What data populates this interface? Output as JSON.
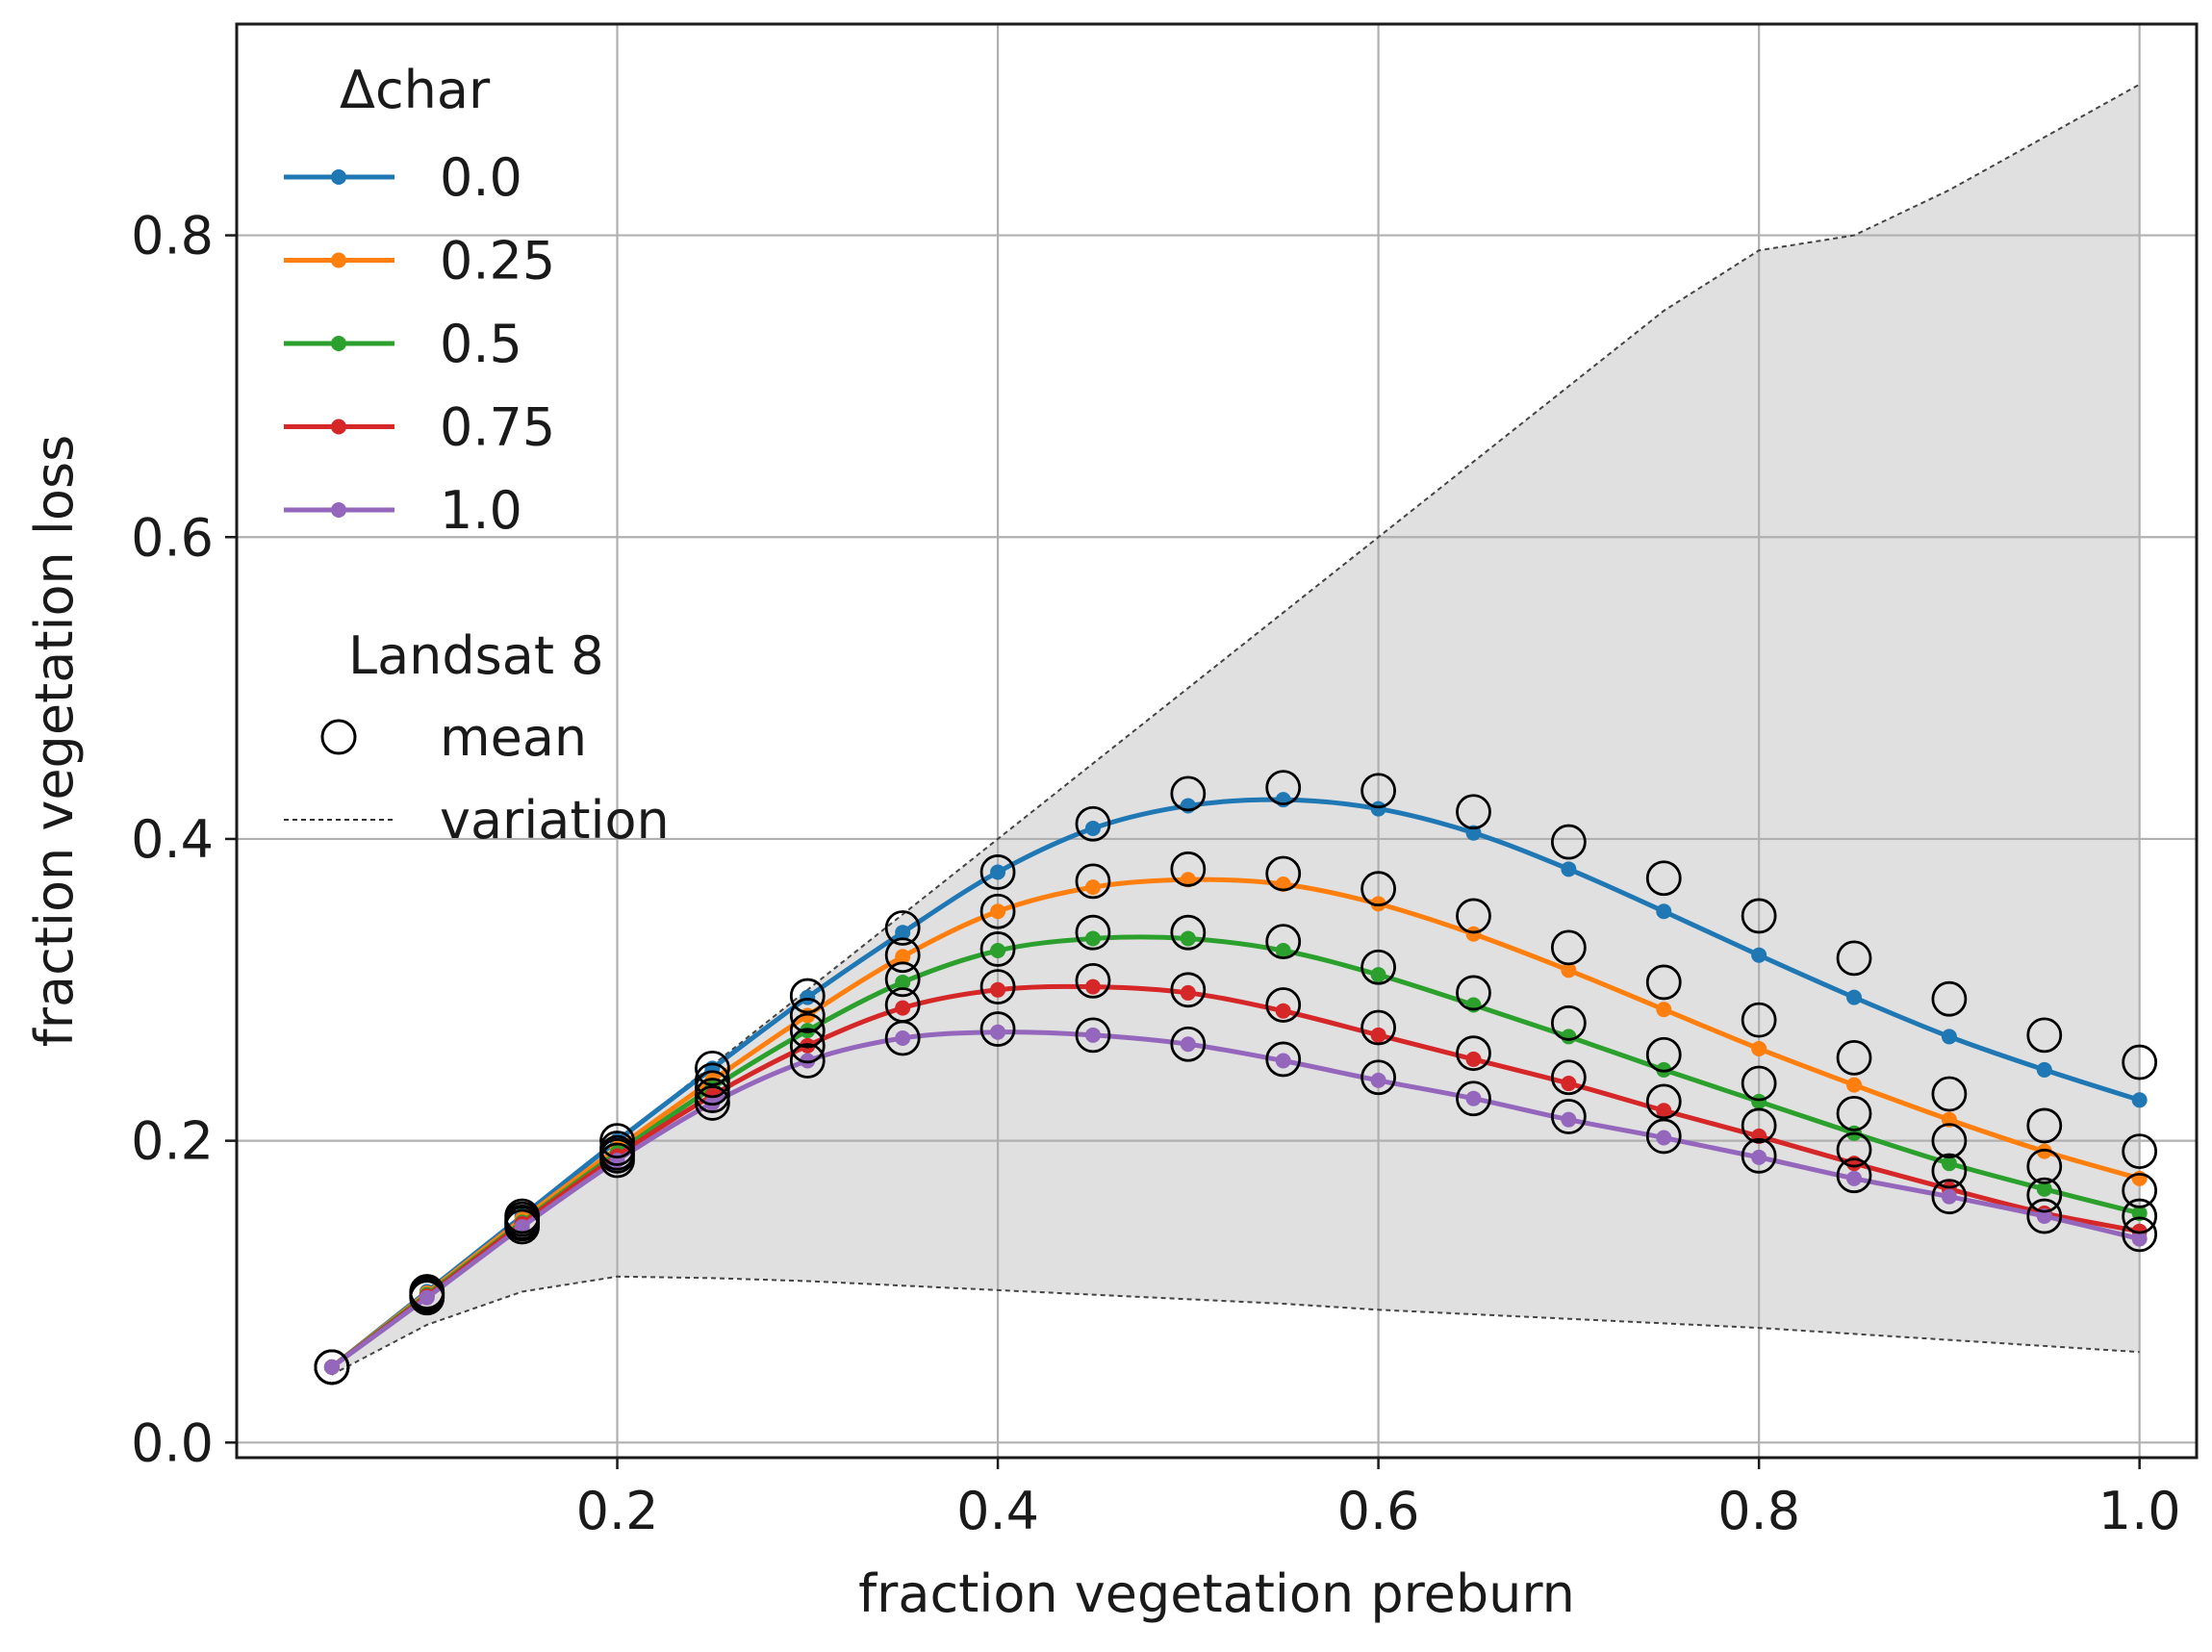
{
  "chart_data": {
    "type": "line",
    "xlabel": "fraction vegetation preburn",
    "ylabel": "fraction vegetation loss",
    "xlim": [
      0.0,
      1.03
    ],
    "ylim": [
      -0.01,
      0.94
    ],
    "xticks": [
      0.2,
      0.4,
      0.6,
      0.8,
      1.0
    ],
    "xtick_labels": [
      "0.2",
      "0.4",
      "0.6",
      "0.8",
      "1.0"
    ],
    "yticks": [
      0.0,
      0.2,
      0.4,
      0.6,
      0.8
    ],
    "ytick_labels": [
      "0.0",
      "0.2",
      "0.4",
      "0.6",
      "0.8"
    ],
    "grid": true,
    "legend": {
      "placement": "top-left",
      "title": "Δchar",
      "obs_title": "Landsat 8",
      "mean_label": "mean",
      "variation_label": "variation"
    },
    "x": [
      0.05,
      0.1,
      0.15,
      0.2,
      0.25,
      0.3,
      0.35,
      0.4,
      0.45,
      0.5,
      0.55,
      0.6,
      0.65,
      0.7,
      0.75,
      0.8,
      0.85,
      0.9,
      0.95,
      1.0
    ],
    "series": [
      {
        "name": "0.0",
        "color": "#1f77b4",
        "values": [
          0.05,
          0.1,
          0.15,
          0.2,
          0.248,
          0.295,
          0.338,
          0.378,
          0.407,
          0.422,
          0.426,
          0.42,
          0.404,
          0.38,
          0.352,
          0.323,
          0.295,
          0.269,
          0.247,
          0.227
        ],
        "obs": [
          0.05,
          0.1,
          0.15,
          0.2,
          0.248,
          0.296,
          0.341,
          0.378,
          0.41,
          0.43,
          0.434,
          0.432,
          0.418,
          0.398,
          0.374,
          0.349,
          0.321,
          0.294,
          0.27,
          0.252
        ]
      },
      {
        "name": "0.25",
        "color": "#ff7f0e",
        "values": [
          0.05,
          0.099,
          0.148,
          0.195,
          0.24,
          0.283,
          0.322,
          0.352,
          0.368,
          0.373,
          0.37,
          0.357,
          0.337,
          0.313,
          0.287,
          0.261,
          0.237,
          0.214,
          0.193,
          0.175
        ],
        "obs": [
          0.05,
          0.099,
          0.148,
          0.195,
          0.24,
          0.283,
          0.323,
          0.352,
          0.372,
          0.38,
          0.377,
          0.367,
          0.349,
          0.328,
          0.305,
          0.28,
          0.255,
          0.231,
          0.21,
          0.193
        ]
      },
      {
        "name": "0.5",
        "color": "#2ca02c",
        "values": [
          0.05,
          0.098,
          0.146,
          0.192,
          0.235,
          0.273,
          0.305,
          0.326,
          0.334,
          0.334,
          0.326,
          0.31,
          0.29,
          0.269,
          0.247,
          0.226,
          0.205,
          0.185,
          0.168,
          0.152
        ],
        "obs": [
          0.05,
          0.098,
          0.146,
          0.192,
          0.235,
          0.273,
          0.307,
          0.327,
          0.338,
          0.338,
          0.332,
          0.315,
          0.298,
          0.278,
          0.257,
          0.238,
          0.218,
          0.2,
          0.183,
          0.167
        ]
      },
      {
        "name": "0.75",
        "color": "#d62728",
        "values": [
          0.05,
          0.097,
          0.145,
          0.19,
          0.23,
          0.263,
          0.288,
          0.3,
          0.302,
          0.298,
          0.286,
          0.27,
          0.254,
          0.238,
          0.22,
          0.203,
          0.185,
          0.168,
          0.152,
          0.14
        ],
        "obs": [
          0.05,
          0.097,
          0.145,
          0.19,
          0.23,
          0.263,
          0.29,
          0.302,
          0.306,
          0.3,
          0.29,
          0.275,
          0.258,
          0.242,
          0.226,
          0.21,
          0.194,
          0.18,
          0.164,
          0.15
        ]
      },
      {
        "name": "1.0",
        "color": "#9467bd",
        "values": [
          0.05,
          0.096,
          0.143,
          0.187,
          0.225,
          0.253,
          0.268,
          0.272,
          0.27,
          0.264,
          0.253,
          0.24,
          0.228,
          0.214,
          0.202,
          0.189,
          0.175,
          0.163,
          0.15,
          0.135
        ],
        "obs": [
          0.05,
          0.096,
          0.143,
          0.187,
          0.225,
          0.253,
          0.268,
          0.274,
          0.27,
          0.264,
          0.254,
          0.242,
          0.228,
          0.216,
          0.203,
          0.19,
          0.177,
          0.163,
          0.15,
          0.138
        ]
      }
    ],
    "variation": {
      "x": [
        0.05,
        0.1,
        0.15,
        0.2,
        0.25,
        0.3,
        0.35,
        0.4,
        0.45,
        0.5,
        0.55,
        0.6,
        0.65,
        0.7,
        0.75,
        0.8,
        0.85,
        0.9,
        0.95,
        1.0
      ],
      "upper": [
        0.05,
        0.1,
        0.15,
        0.2,
        0.25,
        0.3,
        0.35,
        0.4,
        0.45,
        0.5,
        0.55,
        0.6,
        0.65,
        0.7,
        0.75,
        0.79,
        0.8,
        0.83,
        0.865,
        0.9
      ],
      "lower": [
        0.045,
        0.078,
        0.1,
        0.11,
        0.109,
        0.107,
        0.104,
        0.101,
        0.098,
        0.095,
        0.092,
        0.088,
        0.085,
        0.082,
        0.079,
        0.076,
        0.072,
        0.068,
        0.064,
        0.06
      ],
      "fill_color": "#e0e0e0"
    }
  }
}
